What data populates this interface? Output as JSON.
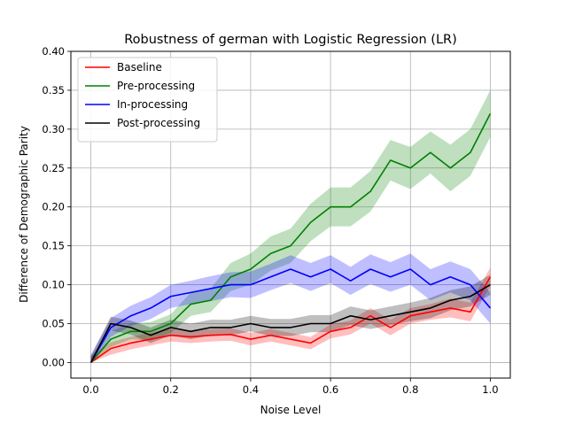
{
  "chart_data": {
    "type": "line",
    "title": "Robustness of german with Logistic Regression (LR)",
    "xlabel": "Noise Level",
    "ylabel": "Difference of Demographic Parity",
    "xlim": [
      -0.05,
      1.05
    ],
    "ylim": [
      -0.02,
      0.4
    ],
    "xticks": [
      0.0,
      0.2,
      0.4,
      0.6,
      0.8,
      1.0
    ],
    "xtick_labels": [
      "0.0",
      "0.2",
      "0.4",
      "0.6",
      "0.8",
      "1.0"
    ],
    "yticks": [
      0.0,
      0.05,
      0.1,
      0.15,
      0.2,
      0.25,
      0.3,
      0.35,
      0.4
    ],
    "ytick_labels": [
      "0.00",
      "0.05",
      "0.10",
      "0.15",
      "0.20",
      "0.25",
      "0.30",
      "0.35",
      "0.40"
    ],
    "grid": true,
    "legend_position": "top-left",
    "x": [
      0.0,
      0.05,
      0.1,
      0.15,
      0.2,
      0.25,
      0.3,
      0.35,
      0.4,
      0.45,
      0.5,
      0.55,
      0.6,
      0.65,
      0.7,
      0.75,
      0.8,
      0.85,
      0.9,
      0.95,
      1.0
    ],
    "series": [
      {
        "name": "Baseline",
        "color": "#ff0000",
        "values": [
          0.0,
          0.018,
          0.025,
          0.03,
          0.035,
          0.033,
          0.035,
          0.036,
          0.03,
          0.035,
          0.03,
          0.025,
          0.04,
          0.045,
          0.06,
          0.045,
          0.06,
          0.065,
          0.07,
          0.065,
          0.11
        ],
        "band": [
          0.008,
          0.008,
          0.008,
          0.008,
          0.008,
          0.008,
          0.008,
          0.008,
          0.008,
          0.008,
          0.008,
          0.008,
          0.009,
          0.009,
          0.01,
          0.01,
          0.01,
          0.01,
          0.012,
          0.012,
          0.012
        ]
      },
      {
        "name": "Pre-processing",
        "color": "#008000",
        "values": [
          0.0,
          0.03,
          0.04,
          0.04,
          0.05,
          0.075,
          0.08,
          0.11,
          0.12,
          0.14,
          0.15,
          0.18,
          0.2,
          0.2,
          0.22,
          0.26,
          0.25,
          0.27,
          0.25,
          0.27,
          0.32
        ],
        "band": [
          0.008,
          0.01,
          0.01,
          0.012,
          0.012,
          0.015,
          0.015,
          0.018,
          0.02,
          0.022,
          0.022,
          0.024,
          0.025,
          0.025,
          0.026,
          0.026,
          0.027,
          0.027,
          0.03,
          0.03,
          0.03
        ]
      },
      {
        "name": "In-processing",
        "color": "#0000ff",
        "values": [
          0.0,
          0.045,
          0.06,
          0.07,
          0.085,
          0.09,
          0.095,
          0.1,
          0.1,
          0.11,
          0.12,
          0.11,
          0.12,
          0.105,
          0.12,
          0.11,
          0.12,
          0.1,
          0.11,
          0.1,
          0.07
        ],
        "band": [
          0.01,
          0.012,
          0.013,
          0.014,
          0.015,
          0.015,
          0.016,
          0.016,
          0.017,
          0.017,
          0.018,
          0.018,
          0.018,
          0.018,
          0.019,
          0.019,
          0.02,
          0.02,
          0.02,
          0.02,
          0.02
        ]
      },
      {
        "name": "Post-processing",
        "color": "#000000",
        "values": [
          0.0,
          0.05,
          0.045,
          0.035,
          0.045,
          0.04,
          0.045,
          0.045,
          0.05,
          0.045,
          0.045,
          0.05,
          0.05,
          0.06,
          0.055,
          0.06,
          0.065,
          0.07,
          0.08,
          0.085,
          0.1
        ],
        "band": [
          0.008,
          0.009,
          0.009,
          0.01,
          0.01,
          0.01,
          0.01,
          0.01,
          0.01,
          0.011,
          0.011,
          0.011,
          0.011,
          0.012,
          0.012,
          0.012,
          0.012,
          0.013,
          0.013,
          0.013,
          0.013
        ]
      }
    ]
  }
}
